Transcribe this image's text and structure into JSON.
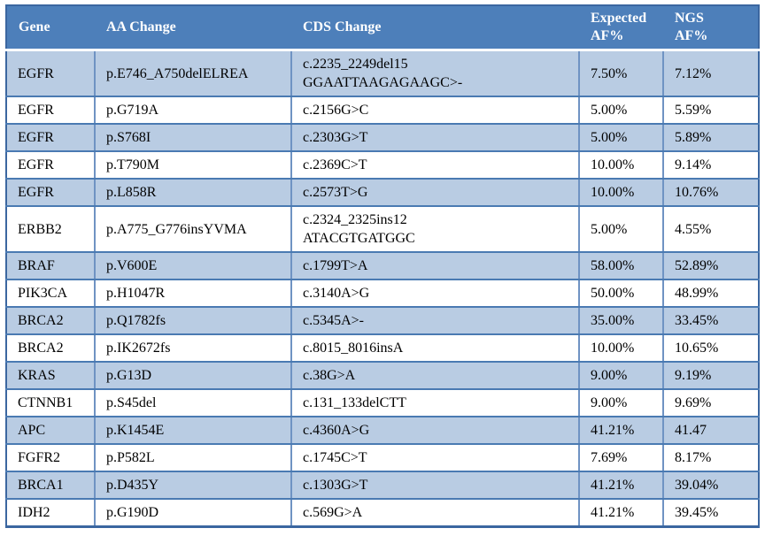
{
  "table": {
    "columns": [
      {
        "key": "gene",
        "label": "Gene"
      },
      {
        "key": "aa",
        "label": "AA Change"
      },
      {
        "key": "cds",
        "label": "CDS Change"
      },
      {
        "key": "expected",
        "label": "Expected\nAF%"
      },
      {
        "key": "ngs",
        "label": "NGS\nAF%"
      }
    ],
    "rows": [
      {
        "gene": "EGFR",
        "aa": "p.E746_A750delELREA",
        "cds": "c.2235_2249del15\nGGAATTAAGAGAAGC>-",
        "expected": "7.50%",
        "ngs": "7.12%"
      },
      {
        "gene": "EGFR",
        "aa": "p.G719A",
        "cds": "c.2156G>C",
        "expected": "5.00%",
        "ngs": "5.59%"
      },
      {
        "gene": "EGFR",
        "aa": "p.S768I",
        "cds": "c.2303G>T",
        "expected": "5.00%",
        "ngs": "5.89%"
      },
      {
        "gene": "EGFR",
        "aa": "p.T790M",
        "cds": "c.2369C>T",
        "expected": "10.00%",
        "ngs": "9.14%"
      },
      {
        "gene": "EGFR",
        "aa": "p.L858R",
        "cds": "c.2573T>G",
        "expected": "10.00%",
        "ngs": "10.76%"
      },
      {
        "gene": "ERBB2",
        "aa": "p.A775_G776insYVMA",
        "cds": "c.2324_2325ins12\nATACGTGATGGC",
        "expected": "5.00%",
        "ngs": "4.55%"
      },
      {
        "gene": "BRAF",
        "aa": "p.V600E",
        "cds": "c.1799T>A",
        "expected": "58.00%",
        "ngs": "52.89%"
      },
      {
        "gene": "PIK3CA",
        "aa": "p.H1047R",
        "cds": "c.3140A>G",
        "expected": "50.00%",
        "ngs": "48.99%"
      },
      {
        "gene": "BRCA2",
        "aa": "p.Q1782fs",
        "cds": "c.5345A>-",
        "expected": "35.00%",
        "ngs": "33.45%"
      },
      {
        "gene": "BRCA2",
        "aa": "p.IK2672fs",
        "cds": "c.8015_8016insA",
        "expected": "10.00%",
        "ngs": "10.65%"
      },
      {
        "gene": "KRAS",
        "aa": "p.G13D",
        "cds": "c.38G>A",
        "expected": "9.00%",
        "ngs": "9.19%"
      },
      {
        "gene": "CTNNB1",
        "aa": "p.S45del",
        "cds": "c.131_133delCTT",
        "expected": "9.00%",
        "ngs": "9.69%"
      },
      {
        "gene": "APC",
        "aa": "p.K1454E",
        "cds": "c.4360A>G",
        "expected": "41.21%",
        "ngs": "41.47"
      },
      {
        "gene": "FGFR2",
        "aa": "p.P582L",
        "cds": "c.1745C>T",
        "expected": "7.69%",
        "ngs": "8.17%"
      },
      {
        "gene": "BRCA1",
        "aa": "p.D435Y",
        "cds": "c.1303G>T",
        "expected": "41.21%",
        "ngs": "39.04%"
      },
      {
        "gene": "IDH2",
        "aa": "p.G190D",
        "cds": "c.569G>A",
        "expected": "41.21%",
        "ngs": "39.45%"
      }
    ]
  },
  "colors": {
    "header_bg": "#4d7fba",
    "header_text": "#ffffff",
    "banded_row_bg": "#b9cce3",
    "plain_row_bg": "#ffffff",
    "row_border": "#4a7ab2",
    "column_border": "#6f93c3",
    "outer_border": "#3b66a0",
    "body_text": "#000000"
  }
}
